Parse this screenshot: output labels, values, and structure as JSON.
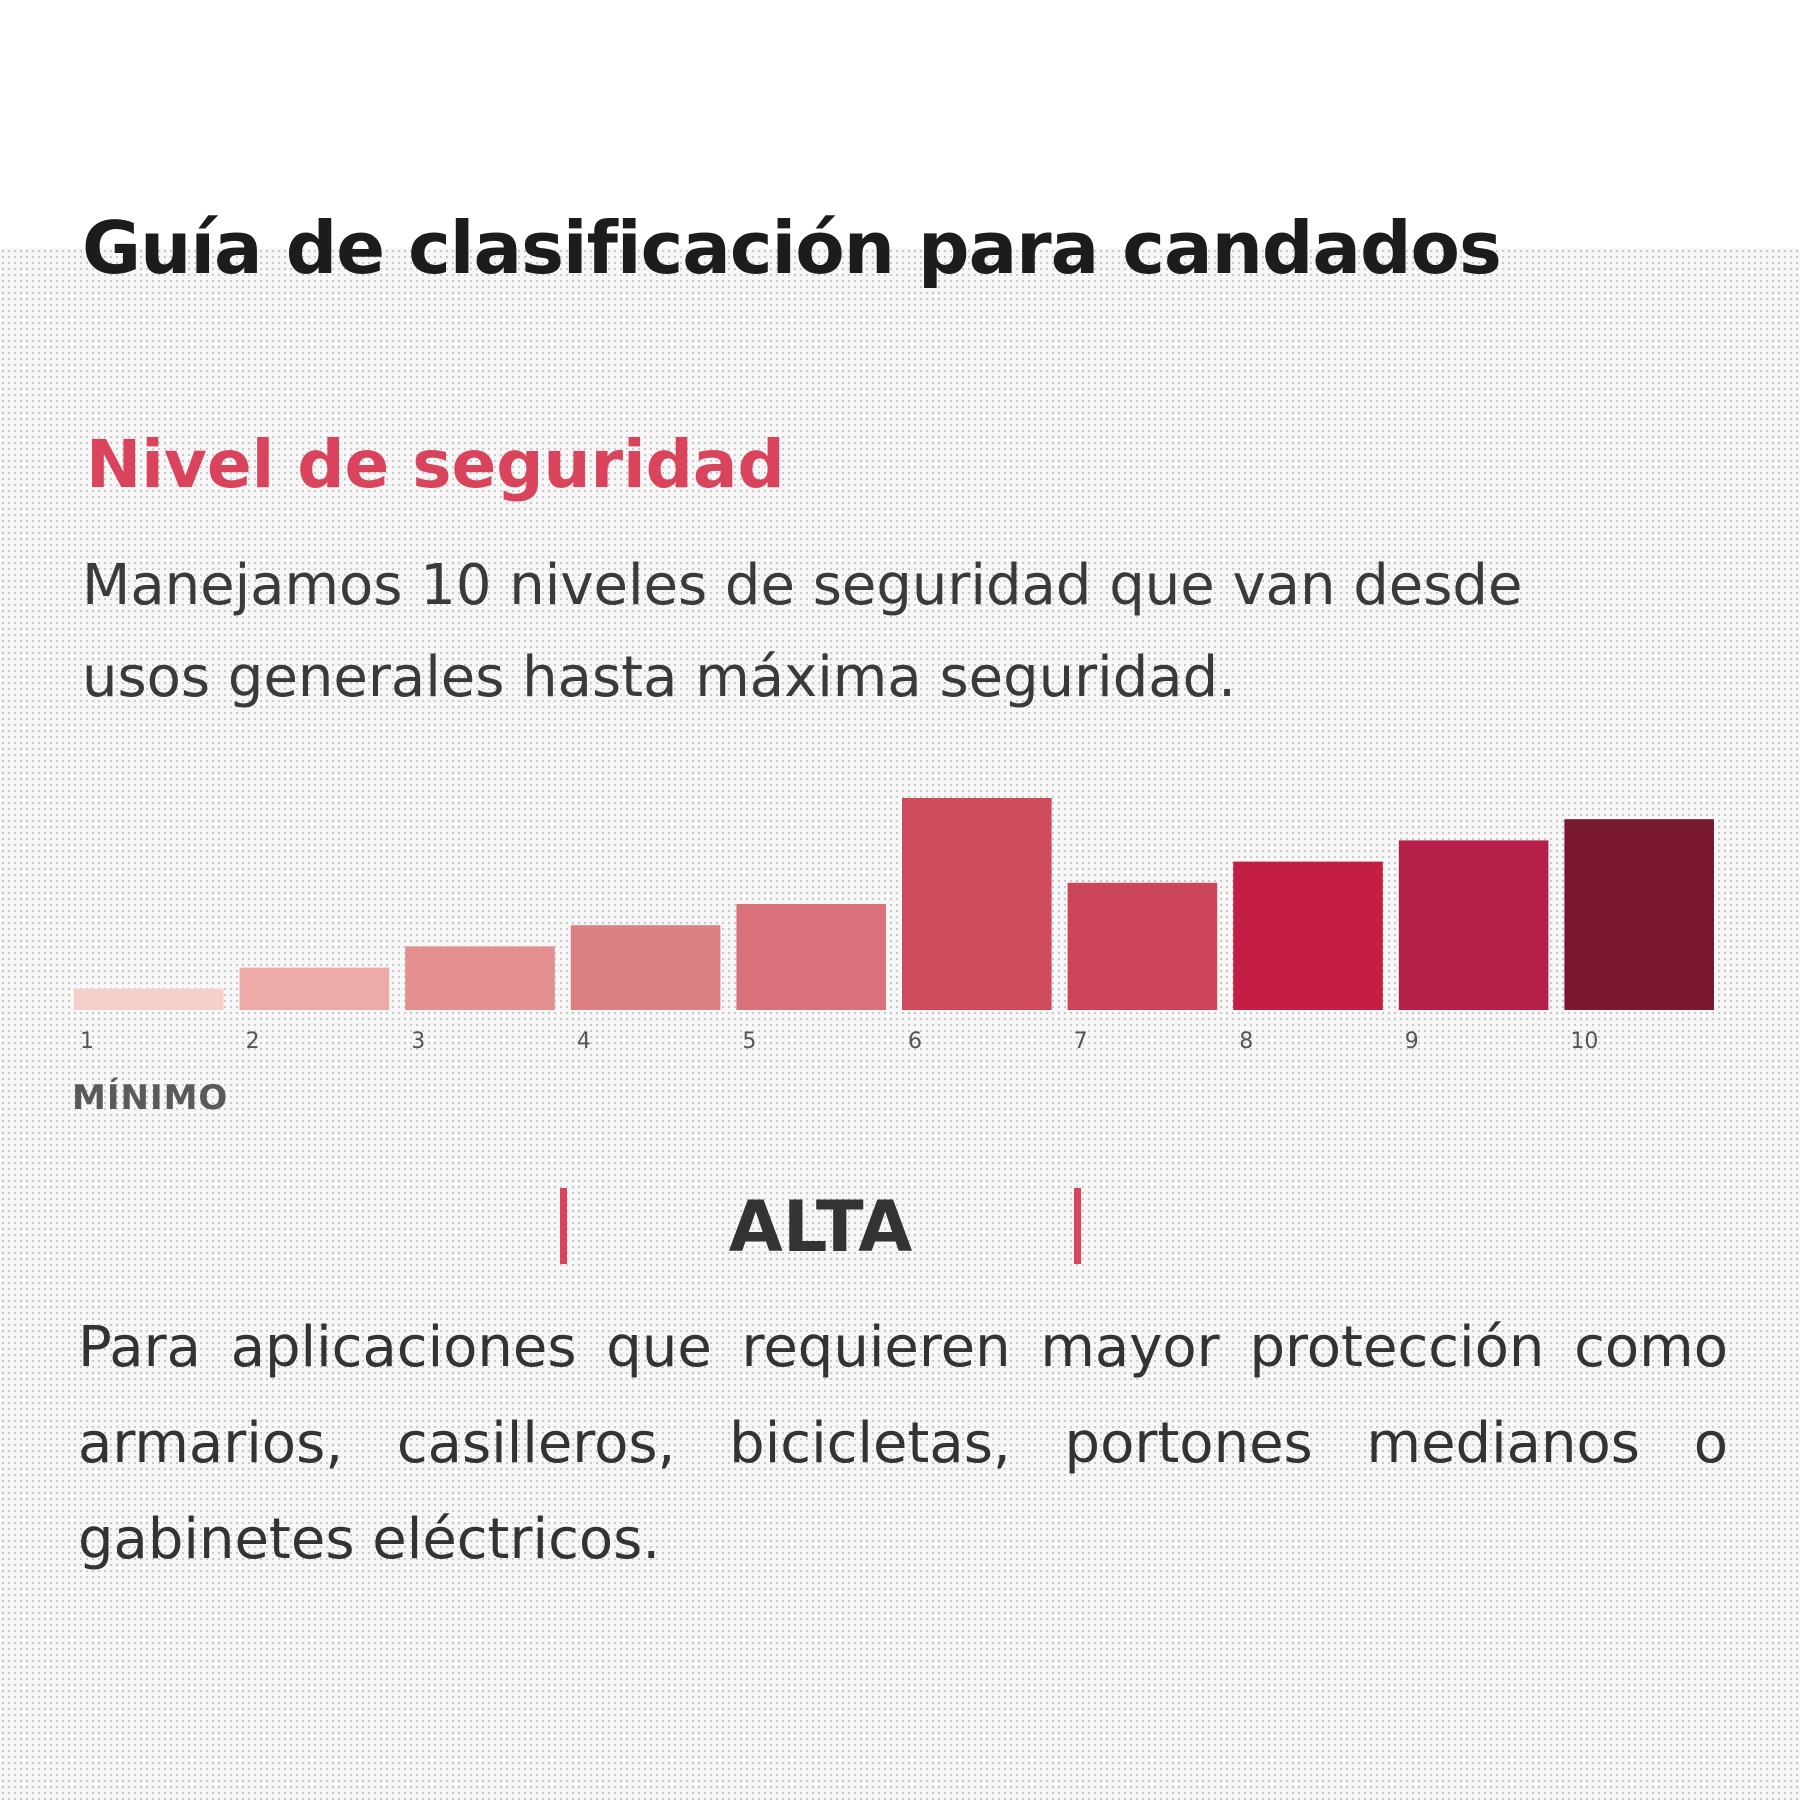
{
  "title": "Guía de clasificación para candados",
  "section": {
    "title": "Nivel de seguridad",
    "intro": "Manejamos 10 niveles de seguridad que van desde usos generales hasta máxima seguridad."
  },
  "colors": {
    "accent": "#d9445c",
    "bars": [
      "#f6cfc9",
      "#eeaaa8",
      "#e49090",
      "#dc8084",
      "#d9727a",
      "#cf4a5a",
      "#cc4558",
      "#c41e45",
      "#b61f47",
      "#7a1830"
    ]
  },
  "chart_data": {
    "type": "bar",
    "categories": [
      "1",
      "2",
      "3",
      "4",
      "5",
      "6",
      "7",
      "8",
      "9",
      "10"
    ],
    "values": [
      1,
      2,
      3,
      4,
      5,
      10,
      6,
      7,
      8,
      9
    ],
    "highlighted_category": "6",
    "min_label": "MÍNIMO",
    "range_label": "ALTA",
    "title": "",
    "xlabel": "",
    "ylabel": ""
  },
  "description": "Para aplicaciones que requieren mayor protección como armarios, casilleros, bicicletas, portones medianos o gabinetes eléctricos."
}
